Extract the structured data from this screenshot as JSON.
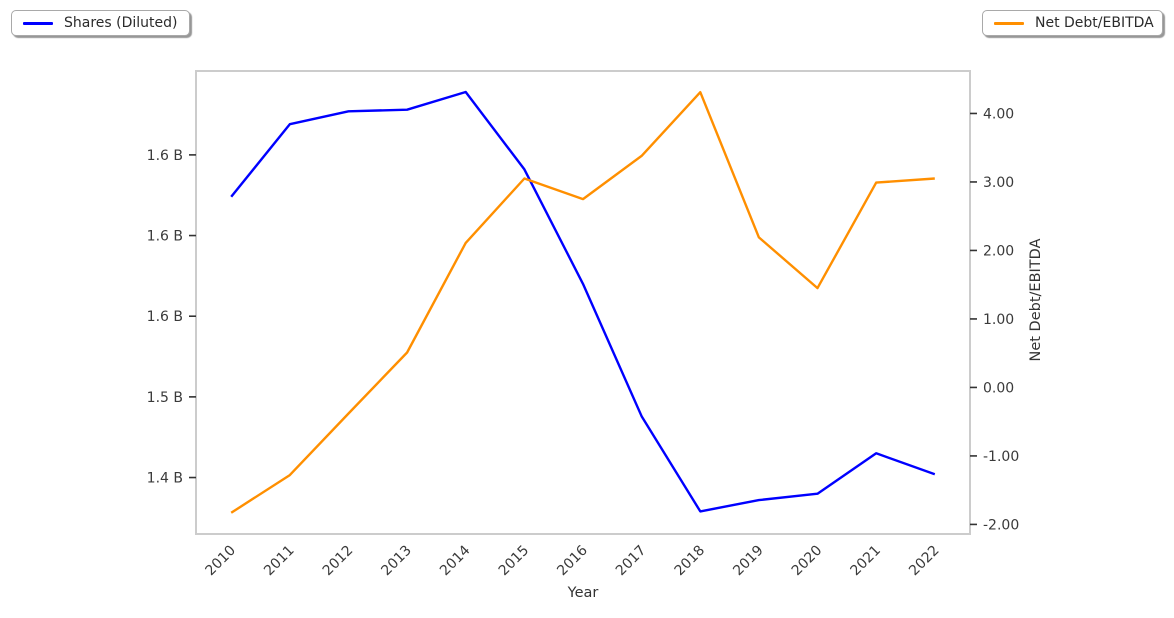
{
  "page": {
    "background": "#ffffff"
  },
  "legends": {
    "left": {
      "label": "Shares (Diluted)",
      "color": "#0000ff"
    },
    "right": {
      "label": "Net Debt/EBITDA",
      "color": "#ff8f00"
    }
  },
  "chart_data": {
    "type": "line",
    "title": "",
    "xlabel": "Year",
    "grid": false,
    "legend_position": "outside top-left (Shares) and outside top-right (Net Debt/EBITDA)",
    "x": [
      2010,
      2011,
      2012,
      2013,
      2014,
      2015,
      2016,
      2017,
      2018,
      2019,
      2020,
      2021,
      2022
    ],
    "series": [
      {
        "name": "Shares (Diluted)",
        "axis": "left",
        "units": "billions of shares",
        "color": "#0000ff",
        "values": [
          1.624,
          1.669,
          1.677,
          1.678,
          1.689,
          1.641,
          1.57,
          1.488,
          1.429,
          1.436,
          1.44,
          1.465,
          1.452
        ]
      },
      {
        "name": "Net Debt/EBITDA",
        "axis": "right",
        "units": "ratio",
        "color": "#ff8f00",
        "values": [
          -1.83,
          -1.28,
          -0.38,
          0.51,
          2.11,
          3.05,
          2.75,
          3.38,
          4.31,
          2.19,
          1.45,
          2.99,
          3.05
        ]
      }
    ],
    "left_axis": {
      "range": [
        1.415,
        1.702
      ],
      "ticks": [
        {
          "value": 1.45,
          "label": "1.4 B"
        },
        {
          "value": 1.5,
          "label": "1.5 B"
        },
        {
          "value": 1.55,
          "label": "1.6 B"
        },
        {
          "value": 1.6,
          "label": "1.6 B"
        },
        {
          "value": 1.65,
          "label": "1.6 B"
        }
      ]
    },
    "right_axis": {
      "label": "Net Debt/EBITDA",
      "range": [
        -2.14,
        4.62
      ],
      "ticks": [
        {
          "value": -2,
          "label": "-2.00"
        },
        {
          "value": -1,
          "label": "-1.00"
        },
        {
          "value": 0,
          "label": "0.00"
        },
        {
          "value": 1,
          "label": "1.00"
        },
        {
          "value": 2,
          "label": "2.00"
        },
        {
          "value": 3,
          "label": "3.00"
        },
        {
          "value": 4,
          "label": "4.00"
        }
      ]
    },
    "x_axis": {
      "label": "Year",
      "range": [
        2009.4,
        2022.6
      ],
      "tick_labels": [
        "2010",
        "2011",
        "2012",
        "2013",
        "2014",
        "2015",
        "2016",
        "2017",
        "2018",
        "2019",
        "2020",
        "2021",
        "2022"
      ]
    }
  },
  "style": {
    "plot_border_color": "#cccccc",
    "tick_color": "#333333",
    "text_color": "#3a3a3a",
    "line_width": 2.4
  }
}
